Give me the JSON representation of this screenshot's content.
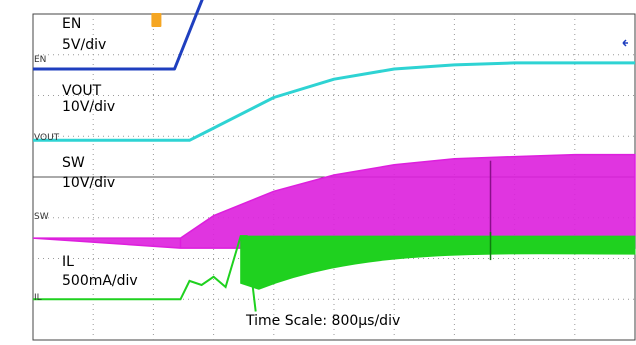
{
  "chart_data": {
    "type": "line",
    "time_scale": "Time Scale: 800µs/div",
    "grid": "dotted",
    "channels": [
      {
        "name": "EN",
        "scale": "5V/div",
        "marker": "EN",
        "color": "#1f3fbf",
        "x": [
          0,
          2.35,
          2.85,
          3.0,
          10
        ],
        "y": [
          0,
          0,
          1.85,
          1.85,
          1.85
        ]
      },
      {
        "name": "VOUT",
        "scale": "10V/div",
        "marker": "VOUT",
        "color": "#2ed3d3",
        "x": [
          0,
          2.6,
          3.0,
          4.0,
          5.0,
          6.0,
          7.0,
          8.0,
          9.0,
          10
        ],
        "y": [
          0,
          0,
          0.3,
          1.05,
          1.5,
          1.75,
          1.85,
          1.9,
          1.9,
          1.9
        ]
      },
      {
        "name": "SW",
        "scale": "10V/div",
        "marker": "SW",
        "color": "#dd1fdd",
        "x": [
          0,
          2.45,
          3.0,
          4.0,
          5.0,
          6.0,
          7.0,
          8.0,
          9.0,
          10
        ],
        "y": [
          0,
          0,
          0.55,
          1.15,
          1.55,
          1.8,
          1.95,
          2.0,
          2.05,
          2.05
        ]
      },
      {
        "name": "IL",
        "scale": "500mA/div",
        "marker": "IL",
        "color": "#1fd11f",
        "x": [
          0,
          2.45,
          2.6,
          2.8,
          3.0,
          3.2,
          3.45,
          3.55,
          3.7,
          4.0,
          5.0,
          6.0,
          7.0,
          8.0,
          9.0,
          10
        ],
        "y": [
          0,
          0,
          0.45,
          0.35,
          0.55,
          0.3,
          1.55,
          1.55,
          -0.3,
          1.55,
          1.55,
          1.55,
          1.55,
          1.55,
          1.55,
          1.55
        ]
      }
    ]
  }
}
